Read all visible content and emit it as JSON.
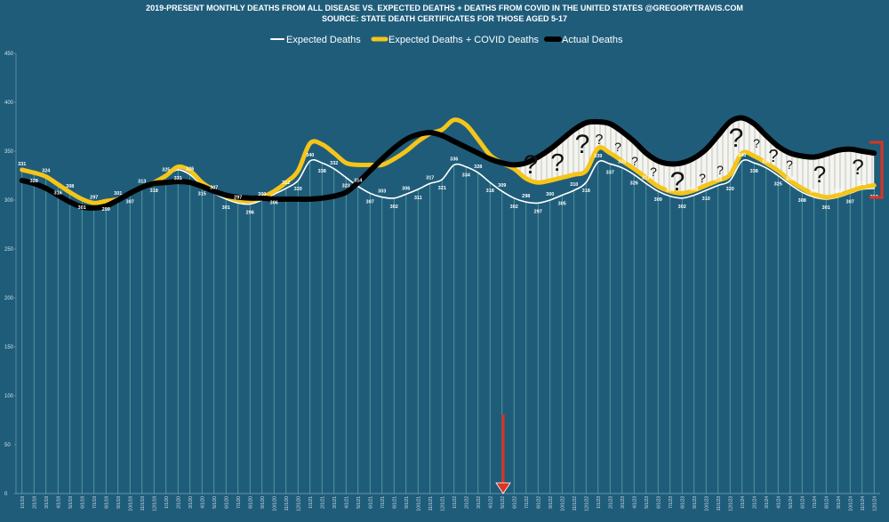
{
  "chart_data": {
    "type": "line",
    "title": "2019-PRESENT MONTHLY DEATHS FROM ALL DISEASE VS. EXPECTED DEATHS + DEATHS FROM COVID IN THE UNITED STATES @GREGORYTRAVIS.COM",
    "subtitle": "SOURCE: STATE DEATH CERTIFICATES FOR THOSE AGED 5-17",
    "categories": [
      "1/1/19",
      "2/1/19",
      "3/1/19",
      "4/1/19",
      "5/1/19",
      "6/1/19",
      "7/1/19",
      "8/1/19",
      "9/1/19",
      "10/1/19",
      "11/1/19",
      "12/1/19",
      "1/1/20",
      "2/1/20",
      "3/1/20",
      "4/1/20",
      "5/1/20",
      "6/1/20",
      "7/1/20",
      "8/1/20",
      "9/1/20",
      "10/1/20",
      "11/1/20",
      "12/1/20",
      "1/1/21",
      "2/1/21",
      "3/1/21",
      "4/1/21",
      "5/1/21",
      "6/1/21",
      "7/1/21",
      "8/1/21",
      "9/1/21",
      "10/1/21",
      "11/1/21",
      "12/1/21",
      "1/1/22",
      "2/1/22",
      "3/1/22",
      "4/1/22",
      "5/1/22",
      "6/1/22",
      "7/1/22",
      "8/1/22",
      "9/1/22",
      "10/1/22",
      "11/1/22",
      "12/1/22",
      "1/1/23",
      "2/1/23",
      "3/1/23",
      "4/1/23",
      "5/1/23",
      "6/1/23",
      "7/1/23",
      "8/1/23",
      "9/1/23",
      "10/1/23",
      "11/1/23",
      "12/1/23",
      "1/1/24",
      "2/1/24",
      "3/1/24",
      "4/1/24",
      "5/1/24",
      "6/1/24",
      "7/1/24",
      "8/1/24",
      "9/1/24",
      "10/1/24",
      "11/1/24",
      "12/1/24"
    ],
    "series": [
      {
        "name": "Expected Deaths",
        "color": "#ffffff",
        "values": [
          331,
          328,
          324,
          316,
          308,
          301,
          297,
          299,
          301,
          307,
          313,
          318,
          325,
          331,
          326,
          315,
          307,
          301,
          297,
          296,
          300,
          306,
          312,
          320,
          340,
          338,
          332,
          323,
          314,
          307,
          303,
          302,
          306,
          311,
          317,
          321,
          336,
          334,
          328,
          318,
          309,
          302,
          298,
          297,
          300,
          305,
          310,
          318,
          339,
          337,
          333,
          326,
          317,
          309,
          304,
          302,
          305,
          310,
          315,
          320,
          340,
          338,
          333,
          325,
          316,
          308,
          303,
          301,
          303,
          307,
          311,
          312
        ]
      },
      {
        "name": "Expected Deaths + COVID Deaths",
        "color": "#f5c518",
        "values": [
          331,
          328,
          324,
          316,
          308,
          301,
          297,
          299,
          301,
          307,
          313,
          318,
          325,
          334,
          330,
          318,
          310,
          304,
          300,
          299,
          303,
          309,
          318,
          330,
          358,
          357,
          348,
          338,
          336,
          336,
          336,
          342,
          350,
          360,
          368,
          372,
          382,
          377,
          362,
          346,
          338,
          332,
          322,
          318,
          320,
          323,
          326,
          330,
          353,
          348,
          340,
          332,
          323,
          314,
          309,
          307,
          310,
          315,
          320,
          326,
          348,
          345,
          338,
          330,
          320,
          312,
          306,
          303,
          305,
          309,
          313,
          315
        ]
      },
      {
        "name": "Actual Deaths",
        "color": "#000000",
        "values": [
          320,
          317,
          312,
          305,
          298,
          293,
          292,
          294,
          300,
          307,
          313,
          317,
          318,
          319,
          318,
          314,
          309,
          305,
          303,
          302,
          302,
          301,
          301,
          301,
          301,
          302,
          304,
          308,
          318,
          330,
          342,
          353,
          362,
          367,
          369,
          366,
          360,
          354,
          348,
          342,
          338,
          336,
          338,
          344,
          352,
          362,
          372,
          379,
          380,
          378,
          370,
          360,
          348,
          340,
          337,
          338,
          343,
          352,
          366,
          380,
          384,
          378,
          366,
          355,
          348,
          345,
          344,
          347,
          351,
          352,
          350,
          348
        ]
      }
    ],
    "ylim": [
      0,
      450
    ],
    "yticks": [
      0,
      50,
      100,
      150,
      200,
      250,
      300,
      350,
      400,
      450
    ],
    "annotations": [
      "?",
      "?",
      "?",
      "?",
      "?",
      "?",
      "?",
      "?",
      "?",
      "?",
      "?",
      "?",
      "?",
      "?",
      "?",
      "?"
    ]
  }
}
